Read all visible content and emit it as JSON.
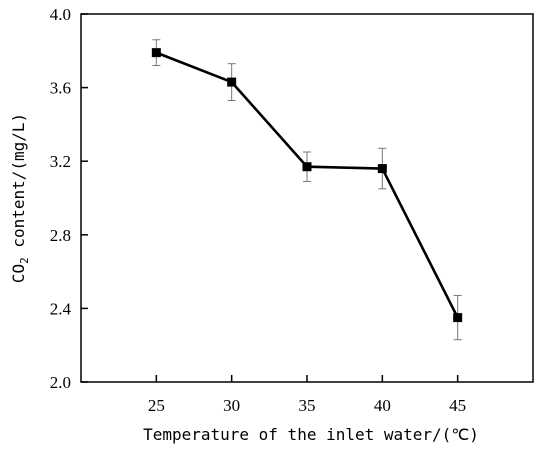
{
  "chart_data": {
    "type": "line",
    "title": "",
    "xlabel": "Temperature of the inlet water/(℃)",
    "ylabel_parts": {
      "prefix": "CO",
      "subscript": "2",
      "suffix": " content/(mg/L)"
    },
    "x": [
      25,
      30,
      35,
      40,
      45
    ],
    "xlim": [
      20,
      50
    ],
    "ylim": [
      2.0,
      4.0
    ],
    "x_ticks": [
      25,
      30,
      35,
      40,
      45
    ],
    "x_tick_labels": [
      "25",
      "30",
      "35",
      "40",
      "45"
    ],
    "y_ticks": [
      2.0,
      2.4,
      2.8,
      3.2,
      3.6,
      4.0
    ],
    "y_tick_labels": [
      "2.0",
      "2.4",
      "2.8",
      "3.2",
      "3.6",
      "4.0"
    ],
    "series": [
      {
        "values": [
          3.79,
          3.63,
          3.17,
          3.16,
          2.35
        ],
        "error": [
          0.07,
          0.1,
          0.08,
          0.11,
          0.12
        ],
        "marker": "square",
        "color": "#000000"
      }
    ],
    "grid": false,
    "legend": "none"
  }
}
